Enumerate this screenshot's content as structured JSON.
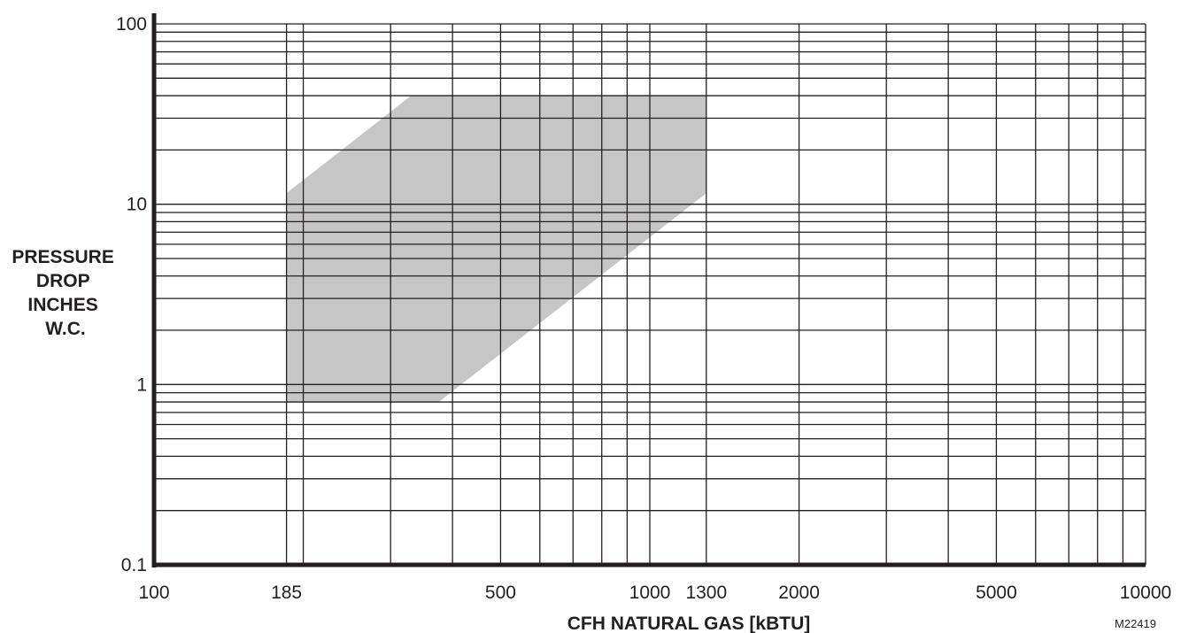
{
  "chart_data": {
    "type": "area",
    "x_scale": "log",
    "y_scale": "log",
    "xlim": [
      100,
      10000
    ],
    "ylim": [
      0.1,
      100
    ],
    "grid": true,
    "xlabel": "CFH NATURAL GAS [kBTU]",
    "ylabel": [
      "PRESSURE",
      "DROP",
      "INCHES",
      "W.C."
    ],
    "x_tick_labels": [
      {
        "value": 100,
        "label": "100"
      },
      {
        "value": 185,
        "label": "185"
      },
      {
        "value": 500,
        "label": "500"
      },
      {
        "value": 1000,
        "label": "1000"
      },
      {
        "value": 1300,
        "label": "1300"
      },
      {
        "value": 2000,
        "label": "2000"
      },
      {
        "value": 5000,
        "label": "5000"
      },
      {
        "value": 10000,
        "label": "10000"
      }
    ],
    "y_tick_labels": [
      {
        "value": 100,
        "label": "100"
      },
      {
        "value": 10,
        "label": "10"
      },
      {
        "value": 1,
        "label": "1"
      },
      {
        "value": 0.1,
        "label": "0.1"
      }
    ],
    "x_gridlines": [
      100,
      185,
      200,
      300,
      400,
      500,
      600,
      700,
      800,
      900,
      1000,
      1300,
      2000,
      3000,
      4000,
      5000,
      6000,
      7000,
      8000,
      9000,
      10000
    ],
    "y_gridlines": [
      0.1,
      0.2,
      0.3,
      0.4,
      0.5,
      0.6,
      0.7,
      0.8,
      0.9,
      1,
      2,
      3,
      4,
      5,
      6,
      7,
      8,
      9,
      10,
      20,
      30,
      40,
      50,
      60,
      70,
      80,
      90,
      100
    ],
    "region": {
      "fill": "#c6c6c6",
      "points": [
        {
          "x": 185,
          "y": 0.8
        },
        {
          "x": 185,
          "y": 11.5
        },
        {
          "x": 330,
          "y": 40
        },
        {
          "x": 1300,
          "y": 40
        },
        {
          "x": 1300,
          "y": 11.5
        },
        {
          "x": 375,
          "y": 0.8
        }
      ]
    },
    "figure_id": "M22419"
  }
}
